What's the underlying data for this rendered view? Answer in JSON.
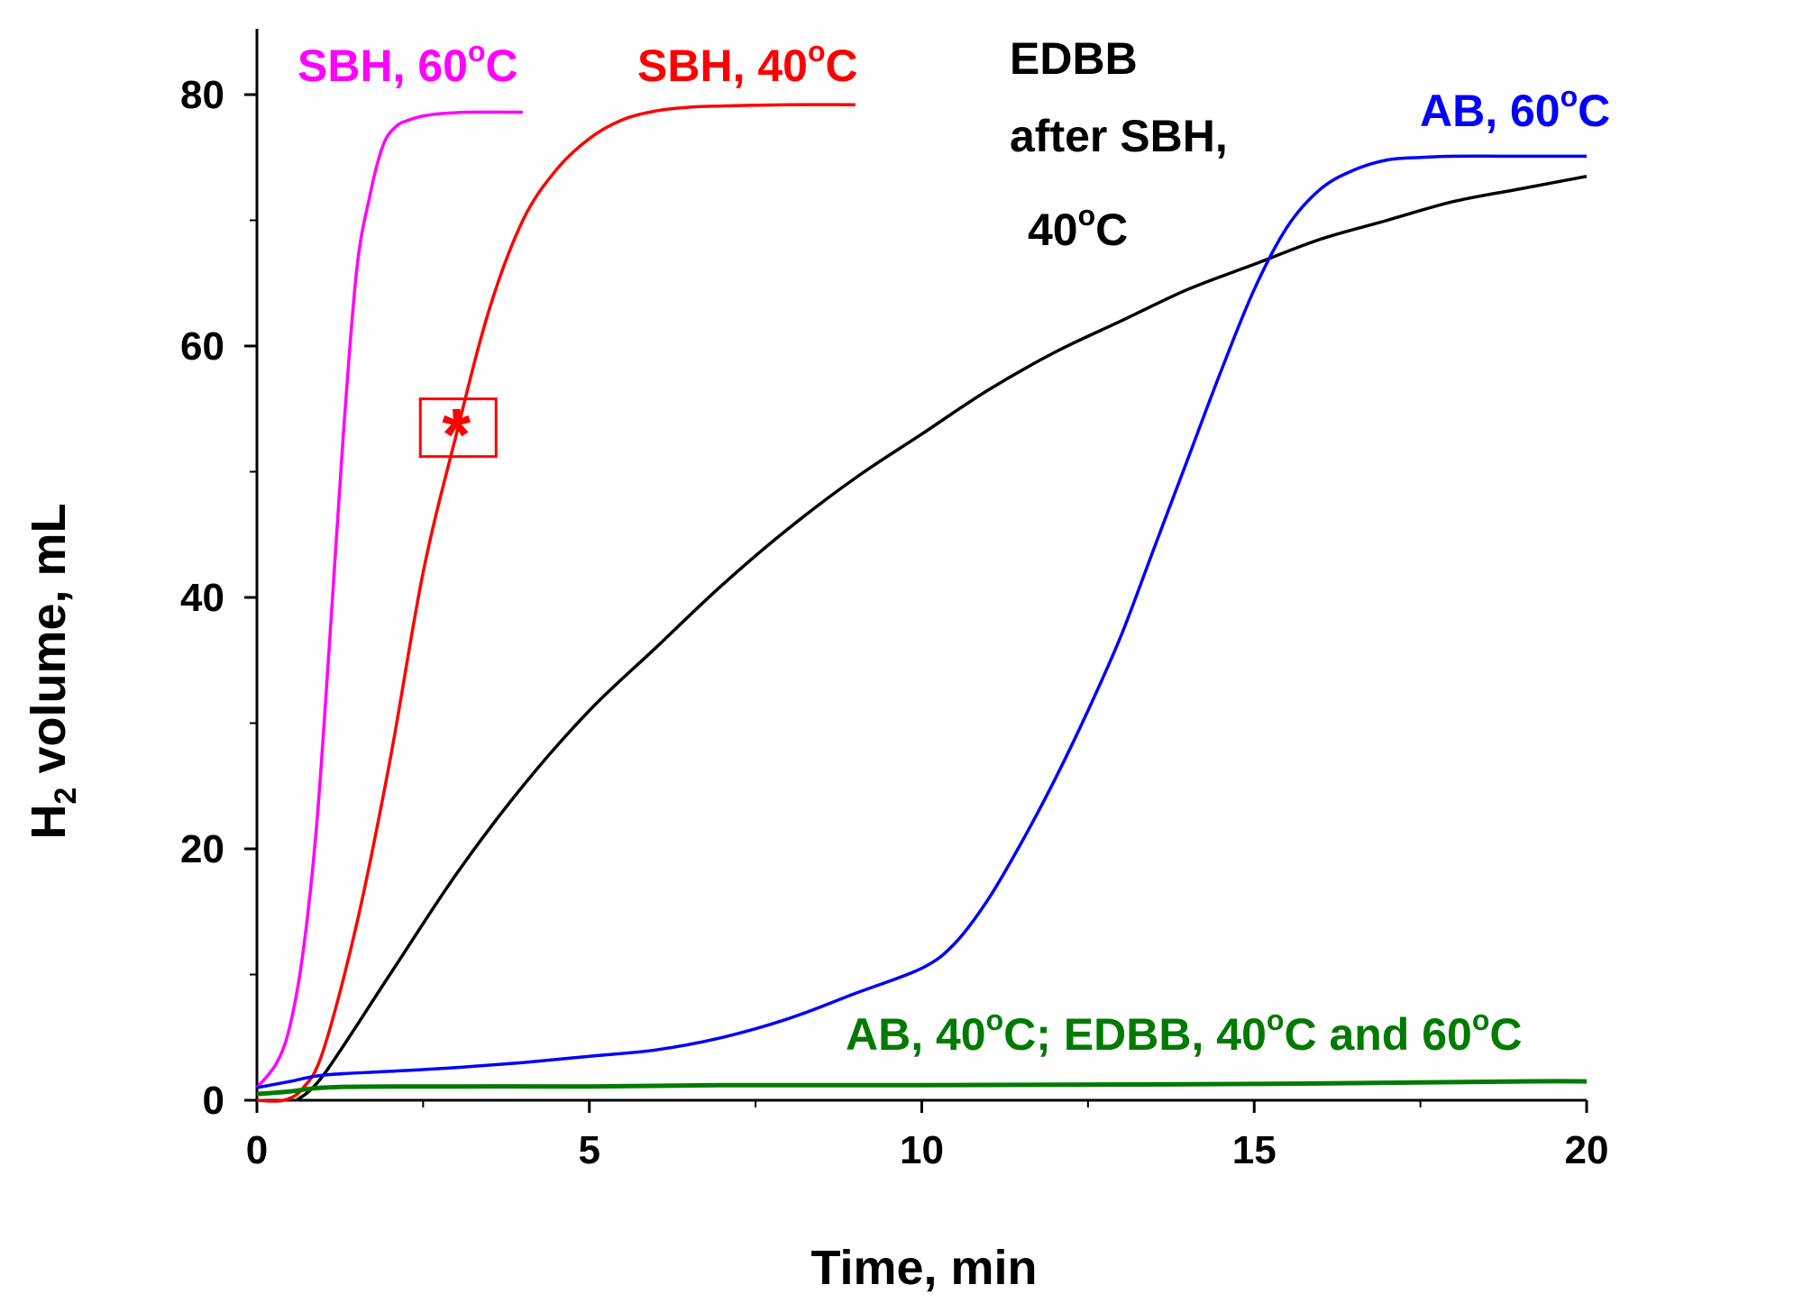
{
  "chart_data": {
    "type": "line",
    "xlabel": "Time, min",
    "ylabel_main": "H",
    "ylabel_sub": "2",
    "ylabel_rest": " volume, mL",
    "xlim": [
      0,
      20
    ],
    "ylim": [
      0,
      85
    ],
    "x_ticks": [
      0,
      5,
      10,
      15,
      20
    ],
    "y_ticks": [
      0,
      20,
      40,
      60,
      80
    ],
    "x_tick_labels": [
      "0",
      "5",
      "10",
      "15",
      "20"
    ],
    "y_tick_labels": [
      "0",
      "20",
      "40",
      "60",
      "80"
    ],
    "grid": false,
    "series": [
      {
        "name": "SBH, 60°C",
        "color": "#ff00ff",
        "x": [
          0,
          0.3,
          0.5,
          0.7,
          0.9,
          1.1,
          1.3,
          1.5,
          1.7,
          1.9,
          2.1,
          2.3,
          2.5,
          2.8,
          3.2,
          4.0
        ],
        "y": [
          1,
          3,
          6,
          12,
          22,
          37,
          53,
          66,
          72,
          76,
          77.5,
          78,
          78.3,
          78.5,
          78.6,
          78.6
        ]
      },
      {
        "name": "SBH, 40°C",
        "color": "#ff0000",
        "x": [
          0,
          0.4,
          0.7,
          1.0,
          1.5,
          2.0,
          2.5,
          3.0,
          3.5,
          4.0,
          4.5,
          5.0,
          5.5,
          6.0,
          6.5,
          7.0,
          8.0,
          9.0
        ],
        "y": [
          0,
          0,
          1,
          4,
          14,
          27,
          42,
          53,
          63,
          70,
          74,
          76.5,
          78,
          78.7,
          79,
          79.1,
          79.2,
          79.2
        ]
      },
      {
        "name": "EDBB after SBH, 40°C",
        "color": "#000000",
        "x": [
          0.6,
          1,
          2,
          3,
          4,
          5,
          6,
          7,
          8,
          9,
          10,
          11,
          12,
          13,
          14,
          15,
          16,
          17,
          18,
          19,
          20
        ],
        "y": [
          0,
          2,
          10,
          18,
          25,
          31,
          36,
          41,
          45.5,
          49.5,
          53,
          56.5,
          59.5,
          62,
          64.5,
          66.5,
          68.5,
          70,
          71.5,
          72.5,
          73.5
        ]
      },
      {
        "name": "AB, 60°C",
        "color": "#0000ff",
        "x": [
          0,
          0.5,
          1,
          2,
          3,
          4,
          5,
          6,
          7,
          8,
          9,
          10,
          10.5,
          11,
          11.5,
          12,
          12.5,
          13,
          13.5,
          14,
          14.5,
          15,
          15.5,
          16,
          16.5,
          17,
          17.5,
          18,
          19,
          20
        ],
        "y": [
          1,
          1.5,
          2,
          2.3,
          2.6,
          3,
          3.5,
          4,
          5,
          6.5,
          8.5,
          10.5,
          12.5,
          16,
          20.5,
          25.5,
          31,
          37,
          44,
          51,
          58,
          64.5,
          69.5,
          72.5,
          74,
          74.8,
          75,
          75.1,
          75.1,
          75.1
        ]
      },
      {
        "name": "AB, 40°C; EDBB, 40°C and 60°C",
        "color": "#007a00",
        "x": [
          0,
          0.5,
          1,
          2,
          5,
          7,
          10,
          15,
          19,
          20
        ],
        "y": [
          0.5,
          0.7,
          1,
          1.1,
          1.1,
          1.2,
          1.2,
          1.3,
          1.5,
          1.5
        ]
      }
    ],
    "annotations": [
      {
        "type": "marker",
        "symbol": "*",
        "x": 3.0,
        "y": 53.5,
        "color": "#ff0000",
        "boxed": true
      }
    ],
    "labels": [
      {
        "name": "sbh60",
        "parts": [
          {
            "t": "SBH, 60"
          },
          {
            "t": "o",
            "sup": true
          },
          {
            "t": "C"
          }
        ],
        "color": "#ff00ff"
      },
      {
        "name": "sbh40",
        "parts": [
          {
            "t": "SBH, 40"
          },
          {
            "t": "o",
            "sup": true
          },
          {
            "t": "C"
          }
        ],
        "color": "#ff0000"
      },
      {
        "name": "edbb-line1",
        "parts": [
          {
            "t": "EDBB"
          }
        ],
        "color": "#000000"
      },
      {
        "name": "edbb-line2",
        "parts": [
          {
            "t": "after SBH,"
          }
        ],
        "color": "#000000"
      },
      {
        "name": "edbb-line3",
        "parts": [
          {
            "t": "40"
          },
          {
            "t": "o",
            "sup": true
          },
          {
            "t": "C"
          }
        ],
        "color": "#000000"
      },
      {
        "name": "ab60",
        "parts": [
          {
            "t": "AB, 60"
          },
          {
            "t": "o",
            "sup": true
          },
          {
            "t": "C"
          }
        ],
        "color": "#0000ff"
      },
      {
        "name": "ab40-edbb",
        "parts": [
          {
            "t": "AB, 40"
          },
          {
            "t": "o",
            "sup": true
          },
          {
            "t": "C; EDBB, 40"
          },
          {
            "t": "o",
            "sup": true
          },
          {
            "t": "C and 60"
          },
          {
            "t": "o",
            "sup": true
          },
          {
            "t": "C"
          }
        ],
        "color": "#007a00"
      }
    ]
  }
}
